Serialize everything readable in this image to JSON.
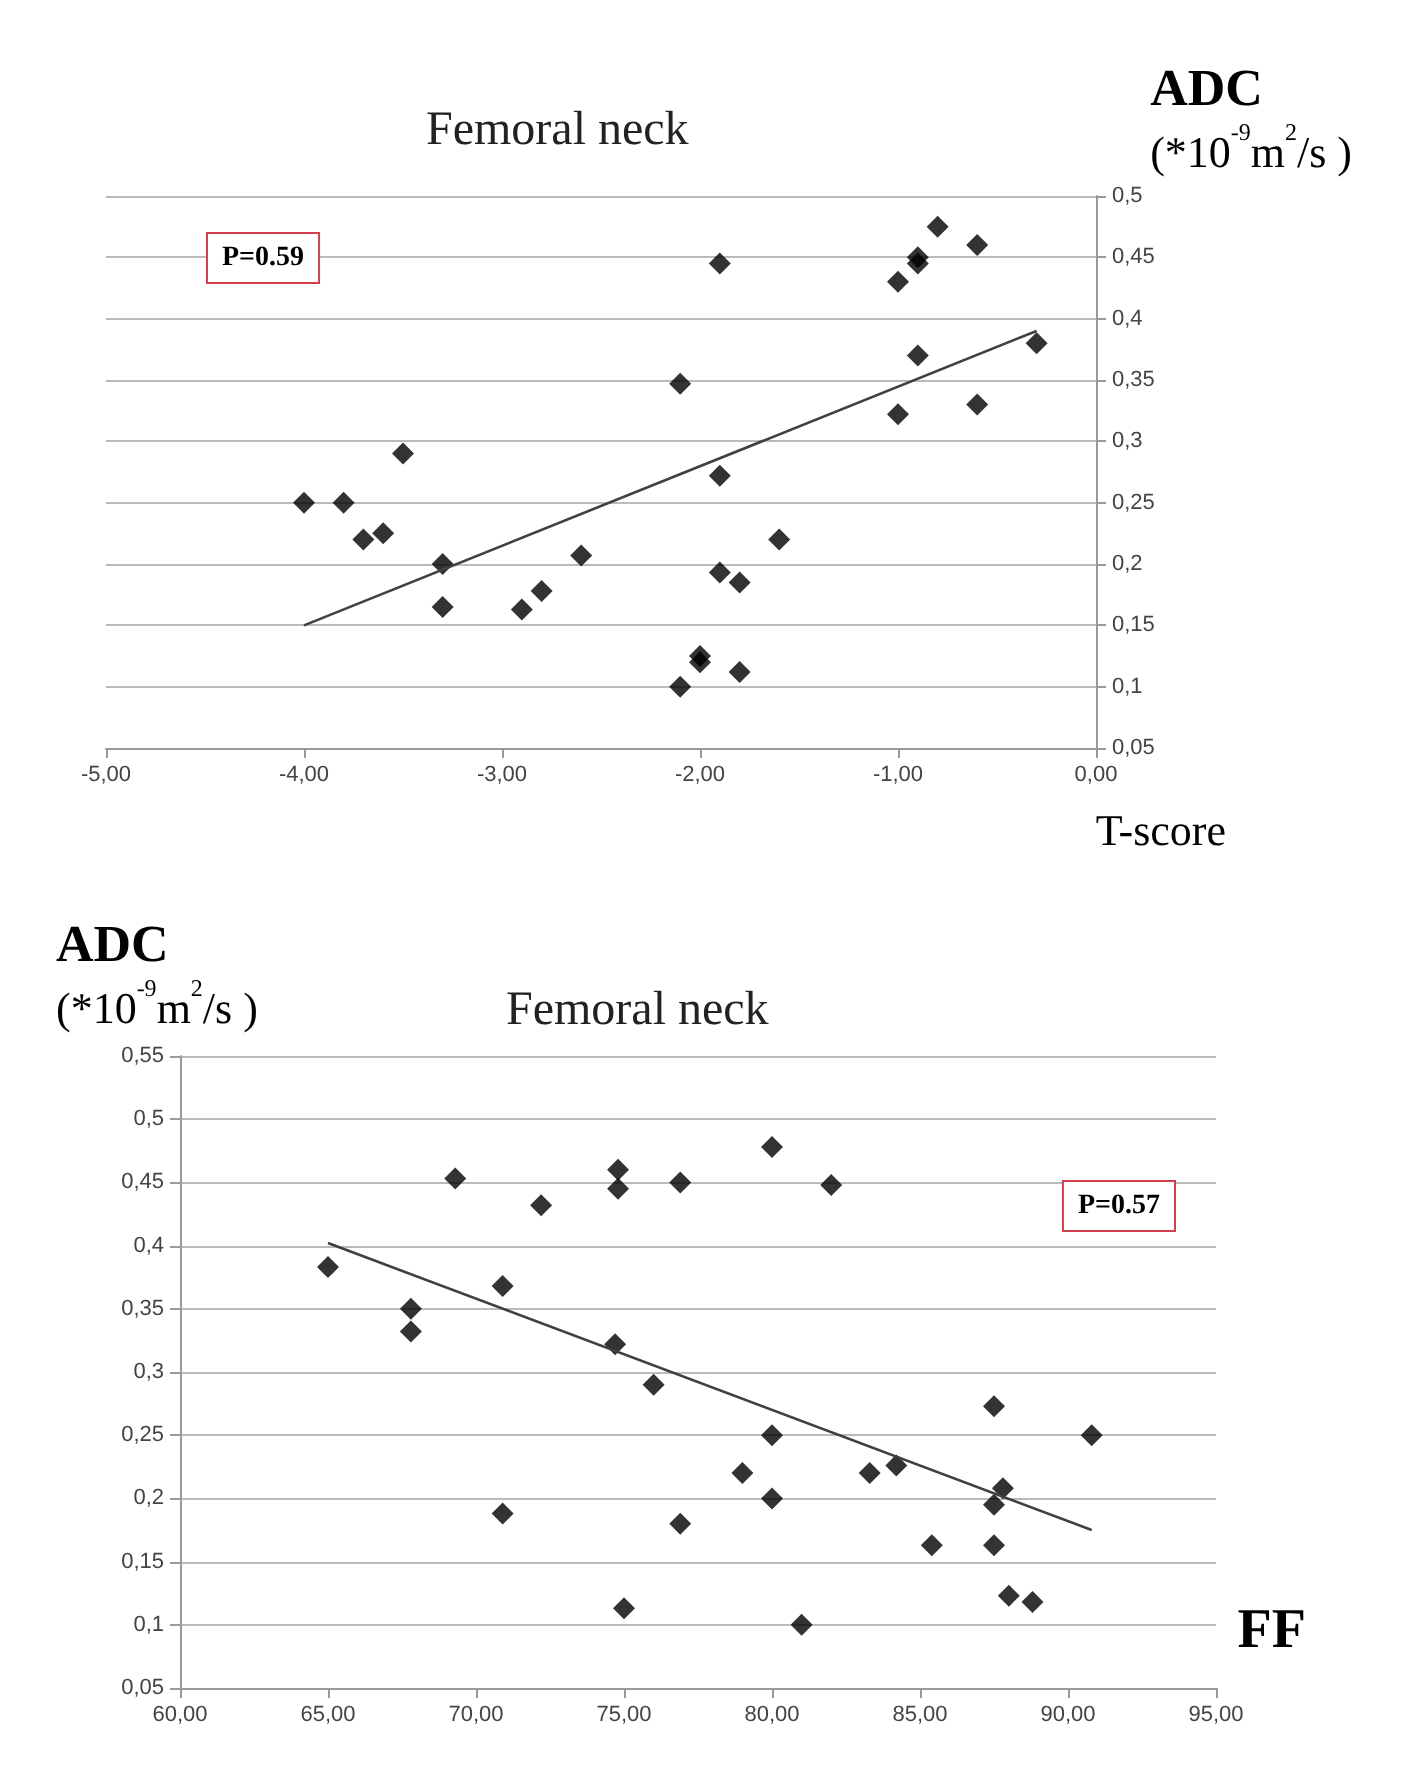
{
  "chart_data": [
    {
      "type": "scatter",
      "title": "Femoral neck",
      "xlabel": "T-score",
      "ylabel": "ADC (*10$^{-9}$m$^{2}$/s )",
      "annotations": [
        "P=0.59"
      ],
      "x": [
        -4.0,
        -3.8,
        -3.7,
        -3.6,
        -3.5,
        -3.3,
        -3.3,
        -2.9,
        -2.8,
        -2.6,
        -2.1,
        -2.1,
        -2.0,
        -2.0,
        -1.9,
        -1.9,
        -1.9,
        -1.8,
        -1.8,
        -1.6,
        -1.0,
        -1.0,
        -0.9,
        -0.9,
        -0.9,
        -0.8,
        -0.6,
        -0.6,
        -0.3
      ],
      "series": [
        {
          "color": "#000000",
          "values": [
            0.25,
            0.25,
            0.22,
            0.225,
            0.29,
            0.2,
            0.165,
            0.163,
            0.178,
            0.207,
            0.347,
            0.1,
            0.12,
            0.125,
            0.445,
            0.272,
            0.193,
            0.185,
            0.112,
            0.22,
            0.43,
            0.322,
            0.45,
            0.445,
            0.37,
            0.475,
            0.46,
            0.33,
            0.38
          ]
        },
        {
          "type": "line",
          "color": "#404040",
          "marker": "none",
          "x": [
            -4.0,
            -0.3
          ],
          "values": [
            0.15,
            0.39
          ]
        }
      ],
      "xlim": [
        -5,
        0
      ],
      "xticks": [
        {
          "value": -5,
          "label": "-5,00"
        },
        {
          "value": -4,
          "label": "-4,00"
        },
        {
          "value": -3,
          "label": "-3,00"
        },
        {
          "value": -2,
          "label": "-2,00"
        },
        {
          "value": -1,
          "label": "-1,00"
        },
        {
          "value": 0,
          "label": "0,00"
        }
      ],
      "ylim": [
        0.05,
        0.5
      ],
      "yticks": [
        {
          "value": 0.05,
          "label": "0,05"
        },
        {
          "value": 0.1,
          "label": "0,1"
        },
        {
          "value": 0.15,
          "label": "0,15"
        },
        {
          "value": 0.2,
          "label": "0,2"
        },
        {
          "value": 0.25,
          "label": "0,25"
        },
        {
          "value": 0.3,
          "label": "0,3"
        },
        {
          "value": 0.35,
          "label": "0,35"
        },
        {
          "value": 0.4,
          "label": "0,4"
        },
        {
          "value": 0.45,
          "label": "0,45"
        },
        {
          "value": 0.5,
          "label": "0,5"
        }
      ],
      "grid": "y",
      "marker": "diamond"
    },
    {
      "type": "scatter",
      "title": "Femoral neck",
      "xlabel": "FF",
      "ylabel": "ADC (*10$^{-9}$m$^{2}$/s )",
      "annotations": [
        "P=0.57"
      ],
      "x": [
        65,
        67.8,
        67.8,
        69.3,
        70.9,
        70.9,
        72.2,
        74.7,
        74.8,
        74.8,
        75,
        76,
        76.9,
        76.9,
        79,
        80,
        80,
        80,
        81,
        82,
        83.3,
        84.2,
        85.4,
        87.5,
        87.5,
        87.5,
        87.8,
        88,
        88.8,
        90.8
      ],
      "series": [
        {
          "color": "#000000",
          "values": [
            0.383,
            0.35,
            0.332,
            0.453,
            0.368,
            0.188,
            0.432,
            0.322,
            0.46,
            0.445,
            0.113,
            0.29,
            0.45,
            0.18,
            0.22,
            0.478,
            0.25,
            0.2,
            0.1,
            0.448,
            0.22,
            0.226,
            0.163,
            0.273,
            0.195,
            0.163,
            0.208,
            0.123,
            0.118,
            0.25
          ]
        },
        {
          "type": "line",
          "color": "#404040",
          "marker": "none",
          "x": [
            65,
            90.8
          ],
          "values": [
            0.402,
            0.175
          ]
        }
      ],
      "xlim": [
        60,
        95
      ],
      "xticks": [
        {
          "value": 60,
          "label": "60,00"
        },
        {
          "value": 65,
          "label": "65,00"
        },
        {
          "value": 70,
          "label": "70,00"
        },
        {
          "value": 75,
          "label": "75,00"
        },
        {
          "value": 80,
          "label": "80,00"
        },
        {
          "value": 85,
          "label": "85,00"
        },
        {
          "value": 90,
          "label": "90,00"
        },
        {
          "value": 95,
          "label": "95,00"
        }
      ],
      "ylim": [
        0.05,
        0.55
      ],
      "yticks": [
        {
          "value": 0.05,
          "label": "0,05"
        },
        {
          "value": 0.1,
          "label": "0,1"
        },
        {
          "value": 0.15,
          "label": "0,15"
        },
        {
          "value": 0.2,
          "label": "0,2"
        },
        {
          "value": 0.25,
          "label": "0,25"
        },
        {
          "value": 0.3,
          "label": "0,3"
        },
        {
          "value": 0.35,
          "label": "0,35"
        },
        {
          "value": 0.4,
          "label": "0,4"
        },
        {
          "value": 0.45,
          "label": "0,45"
        },
        {
          "value": 0.5,
          "label": "0,5"
        },
        {
          "value": 0.55,
          "label": "0,55"
        }
      ],
      "grid": "y",
      "marker": "diamond"
    }
  ]
}
